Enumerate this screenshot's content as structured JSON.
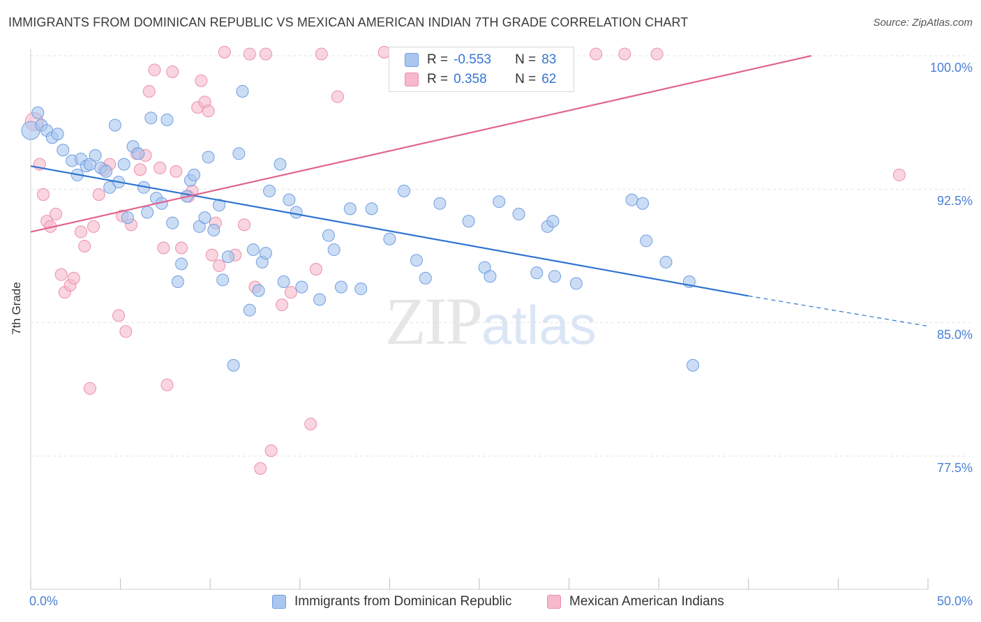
{
  "title": "IMMIGRANTS FROM DOMINICAN REPUBLIC VS MEXICAN AMERICAN INDIAN 7TH GRADE CORRELATION CHART",
  "source": "Source: ZipAtlas.com",
  "watermark": {
    "zip": "ZIP",
    "atlas": "atlas"
  },
  "colors": {
    "blue_fill": "#a9c6ee",
    "blue_stroke": "#6f9ee0",
    "blue_line": "#2f74d0",
    "pink_fill": "#f5b9cb",
    "pink_stroke": "#ec8faa",
    "pink_line": "#e0648e",
    "tick_text": "#4a7fd4",
    "grid": "#e2e2e2"
  },
  "legend": {
    "rows": [
      {
        "r_label": "R =",
        "r_value": "-0.553",
        "n_label": "N =",
        "n_value": "83",
        "color": "blue"
      },
      {
        "r_label": "R =",
        "r_value": "0.358",
        "n_label": "N =",
        "n_value": "62",
        "color": "pink"
      }
    ]
  },
  "chart_data": {
    "type": "scatter",
    "title": "IMMIGRANTS FROM DOMINICAN REPUBLIC VS MEXICAN AMERICAN INDIAN 7TH GRADE CORRELATION CHART",
    "xlabel": "",
    "ylabel": "7th Grade",
    "xlim": [
      0,
      50
    ],
    "ylim": [
      70.0,
      101.5
    ],
    "x_tick_labels": [
      "0.0%",
      "50.0%"
    ],
    "y_ticks": [
      77.5,
      85.0,
      92.5,
      100.0
    ],
    "y_tick_labels": [
      "77.5%",
      "85.0%",
      "92.5%",
      "100.0%"
    ],
    "grid": true,
    "legend_position": "bottom",
    "series": [
      {
        "name": "Immigrants from Dominican Republic",
        "color": "blue",
        "trend": {
          "x0": 0,
          "y0": 93.8,
          "x1": 40,
          "y1": 86.5,
          "dashed_to_x": 50,
          "dashed_to_y": 84.8
        },
        "points": [
          [
            0.0,
            95.8
          ],
          [
            0.4,
            96.8
          ],
          [
            0.6,
            96.1
          ],
          [
            0.9,
            95.8
          ],
          [
            1.2,
            95.4
          ],
          [
            1.5,
            95.6
          ],
          [
            1.8,
            94.7
          ],
          [
            2.3,
            94.1
          ],
          [
            2.6,
            93.3
          ],
          [
            2.8,
            94.2
          ],
          [
            3.1,
            93.8
          ],
          [
            3.3,
            93.9
          ],
          [
            3.6,
            94.4
          ],
          [
            3.9,
            93.7
          ],
          [
            4.2,
            93.5
          ],
          [
            4.4,
            92.6
          ],
          [
            4.7,
            96.1
          ],
          [
            4.9,
            92.9
          ],
          [
            5.2,
            93.9
          ],
          [
            5.4,
            90.9
          ],
          [
            5.7,
            94.9
          ],
          [
            6.0,
            94.5
          ],
          [
            6.3,
            92.6
          ],
          [
            6.5,
            91.2
          ],
          [
            6.7,
            96.5
          ],
          [
            7.0,
            92.0
          ],
          [
            7.3,
            91.7
          ],
          [
            7.6,
            96.4
          ],
          [
            7.9,
            90.6
          ],
          [
            8.2,
            87.3
          ],
          [
            8.4,
            88.3
          ],
          [
            8.7,
            92.1
          ],
          [
            8.9,
            93.0
          ],
          [
            9.1,
            93.3
          ],
          [
            9.4,
            90.4
          ],
          [
            9.7,
            90.9
          ],
          [
            9.9,
            94.3
          ],
          [
            10.2,
            90.2
          ],
          [
            10.5,
            91.6
          ],
          [
            10.7,
            87.4
          ],
          [
            11.0,
            88.7
          ],
          [
            11.3,
            82.6
          ],
          [
            11.6,
            94.5
          ],
          [
            11.8,
            98.0
          ],
          [
            12.2,
            85.7
          ],
          [
            12.4,
            89.1
          ],
          [
            12.7,
            86.8
          ],
          [
            12.9,
            88.4
          ],
          [
            13.1,
            88.9
          ],
          [
            13.3,
            92.4
          ],
          [
            13.9,
            93.9
          ],
          [
            14.1,
            87.3
          ],
          [
            14.4,
            91.9
          ],
          [
            14.8,
            91.2
          ],
          [
            15.1,
            87.0
          ],
          [
            16.1,
            86.3
          ],
          [
            16.6,
            89.9
          ],
          [
            16.9,
            89.1
          ],
          [
            17.3,
            87.0
          ],
          [
            17.8,
            91.4
          ],
          [
            18.4,
            86.9
          ],
          [
            19.0,
            91.4
          ],
          [
            20.0,
            89.7
          ],
          [
            20.8,
            92.4
          ],
          [
            21.5,
            88.5
          ],
          [
            22.0,
            87.5
          ],
          [
            22.8,
            91.7
          ],
          [
            24.4,
            90.7
          ],
          [
            25.3,
            88.1
          ],
          [
            25.6,
            87.6
          ],
          [
            26.1,
            91.8
          ],
          [
            27.2,
            91.1
          ],
          [
            28.2,
            87.8
          ],
          [
            28.8,
            90.4
          ],
          [
            29.1,
            90.7
          ],
          [
            29.2,
            87.6
          ],
          [
            30.4,
            87.2
          ],
          [
            33.5,
            91.9
          ],
          [
            34.1,
            91.7
          ],
          [
            34.3,
            89.6
          ],
          [
            35.4,
            88.4
          ],
          [
            36.7,
            87.3
          ],
          [
            36.9,
            82.6
          ]
        ]
      },
      {
        "name": "Mexican American Indians",
        "color": "pink",
        "trend": {
          "x0": 0,
          "y0": 90.1,
          "x1": 43.5,
          "y1": 100.0
        },
        "points": [
          [
            0.2,
            96.3
          ],
          [
            0.5,
            93.9
          ],
          [
            0.7,
            92.2
          ],
          [
            0.9,
            90.7
          ],
          [
            1.1,
            90.4
          ],
          [
            1.4,
            91.1
          ],
          [
            1.7,
            87.7
          ],
          [
            1.9,
            86.7
          ],
          [
            2.2,
            87.1
          ],
          [
            2.4,
            87.5
          ],
          [
            2.8,
            90.1
          ],
          [
            3.0,
            89.3
          ],
          [
            3.3,
            81.3
          ],
          [
            3.5,
            90.4
          ],
          [
            3.8,
            92.2
          ],
          [
            4.1,
            93.6
          ],
          [
            4.4,
            93.9
          ],
          [
            4.9,
            85.4
          ],
          [
            5.1,
            91.0
          ],
          [
            5.3,
            84.5
          ],
          [
            5.6,
            90.5
          ],
          [
            5.9,
            94.5
          ],
          [
            6.1,
            93.6
          ],
          [
            6.4,
            94.4
          ],
          [
            6.6,
            98.0
          ],
          [
            6.9,
            99.2
          ],
          [
            7.2,
            93.7
          ],
          [
            7.4,
            89.2
          ],
          [
            7.6,
            81.5
          ],
          [
            7.9,
            99.1
          ],
          [
            8.1,
            93.5
          ],
          [
            8.4,
            89.2
          ],
          [
            8.8,
            92.1
          ],
          [
            9.0,
            92.4
          ],
          [
            9.3,
            97.1
          ],
          [
            9.5,
            98.6
          ],
          [
            9.7,
            97.4
          ],
          [
            9.9,
            96.9
          ],
          [
            10.1,
            88.8
          ],
          [
            10.3,
            90.6
          ],
          [
            10.5,
            88.2
          ],
          [
            10.8,
            100.2
          ],
          [
            11.4,
            88.8
          ],
          [
            11.9,
            90.5
          ],
          [
            12.2,
            100.1
          ],
          [
            12.5,
            87.0
          ],
          [
            12.8,
            76.8
          ],
          [
            13.1,
            100.1
          ],
          [
            13.4,
            77.8
          ],
          [
            14.0,
            86.0
          ],
          [
            14.5,
            86.7
          ],
          [
            15.6,
            79.3
          ],
          [
            15.9,
            88.0
          ],
          [
            16.2,
            100.1
          ],
          [
            17.1,
            97.7
          ],
          [
            19.7,
            100.2
          ],
          [
            20.5,
            100.1
          ],
          [
            27.2,
            100.1
          ],
          [
            31.5,
            100.1
          ],
          [
            33.1,
            100.1
          ],
          [
            34.9,
            100.1
          ],
          [
            48.4,
            93.3
          ]
        ]
      }
    ]
  },
  "bottom_legend": {
    "items": [
      {
        "label": "Immigrants from Dominican Republic",
        "color": "blue"
      },
      {
        "label": "Mexican American Indians",
        "color": "pink"
      }
    ]
  }
}
